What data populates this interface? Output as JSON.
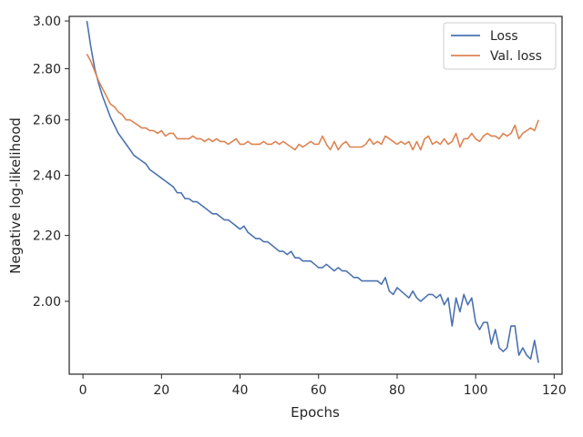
{
  "chart_data": {
    "type": "line",
    "xlabel": "Epochs",
    "ylabel": "Negative log-likelihood",
    "xlim": [
      -3.5,
      122
    ],
    "ylim": [
      1.8,
      3.02
    ],
    "y_scale": "log",
    "x_ticks": [
      0,
      20,
      40,
      60,
      80,
      100,
      120
    ],
    "y_ticks": [
      2.0,
      2.2,
      2.4,
      2.6,
      2.8,
      3.0
    ],
    "y_tick_labels": [
      "2.00",
      "2.20",
      "2.40",
      "2.60",
      "2.80",
      "3.00"
    ],
    "grid": false,
    "legend_position": "top-right",
    "series": [
      {
        "name": "Loss",
        "color": "#4c72b0",
        "x": [
          1,
          2,
          3,
          4,
          5,
          6,
          7,
          8,
          9,
          10,
          11,
          12,
          13,
          14,
          15,
          16,
          17,
          18,
          19,
          20,
          21,
          22,
          23,
          24,
          25,
          26,
          27,
          28,
          29,
          30,
          31,
          32,
          33,
          34,
          35,
          36,
          37,
          38,
          39,
          40,
          41,
          42,
          43,
          44,
          45,
          46,
          47,
          48,
          49,
          50,
          51,
          52,
          53,
          54,
          55,
          56,
          57,
          58,
          59,
          60,
          61,
          62,
          63,
          64,
          65,
          66,
          67,
          68,
          69,
          70,
          71,
          72,
          73,
          74,
          75,
          76,
          77,
          78,
          79,
          80,
          81,
          82,
          83,
          84,
          85,
          86,
          87,
          88,
          89,
          90,
          91,
          92,
          93,
          94,
          95,
          96,
          97,
          98,
          99,
          100,
          101,
          102,
          103,
          104,
          105,
          106,
          107,
          108,
          109,
          110,
          111,
          112,
          113,
          114,
          115,
          116
        ],
        "y": [
          3.0,
          2.89,
          2.8,
          2.74,
          2.69,
          2.65,
          2.61,
          2.58,
          2.55,
          2.53,
          2.51,
          2.49,
          2.47,
          2.46,
          2.45,
          2.44,
          2.42,
          2.41,
          2.4,
          2.39,
          2.38,
          2.37,
          2.36,
          2.34,
          2.34,
          2.32,
          2.32,
          2.31,
          2.31,
          2.3,
          2.29,
          2.28,
          2.27,
          2.27,
          2.26,
          2.25,
          2.25,
          2.24,
          2.23,
          2.22,
          2.23,
          2.21,
          2.2,
          2.19,
          2.19,
          2.18,
          2.18,
          2.17,
          2.16,
          2.15,
          2.15,
          2.14,
          2.15,
          2.13,
          2.13,
          2.12,
          2.12,
          2.12,
          2.11,
          2.1,
          2.1,
          2.11,
          2.1,
          2.09,
          2.1,
          2.09,
          2.09,
          2.08,
          2.07,
          2.07,
          2.06,
          2.06,
          2.06,
          2.06,
          2.06,
          2.05,
          2.07,
          2.03,
          2.02,
          2.04,
          2.03,
          2.02,
          2.01,
          2.03,
          2.01,
          2.0,
          2.01,
          2.02,
          2.02,
          2.01,
          2.02,
          1.99,
          2.01,
          1.93,
          2.01,
          1.97,
          2.02,
          1.99,
          2.01,
          1.94,
          1.92,
          1.94,
          1.94,
          1.88,
          1.92,
          1.87,
          1.86,
          1.87,
          1.93,
          1.93,
          1.85,
          1.87,
          1.85,
          1.84,
          1.89,
          1.83
        ]
      },
      {
        "name": "Val. loss",
        "color": "#dd8452",
        "x": [
          1,
          2,
          3,
          4,
          5,
          6,
          7,
          8,
          9,
          10,
          11,
          12,
          13,
          14,
          15,
          16,
          17,
          18,
          19,
          20,
          21,
          22,
          23,
          24,
          25,
          26,
          27,
          28,
          29,
          30,
          31,
          32,
          33,
          34,
          35,
          36,
          37,
          38,
          39,
          40,
          41,
          42,
          43,
          44,
          45,
          46,
          47,
          48,
          49,
          50,
          51,
          52,
          53,
          54,
          55,
          56,
          57,
          58,
          59,
          60,
          61,
          62,
          63,
          64,
          65,
          66,
          67,
          68,
          69,
          70,
          71,
          72,
          73,
          74,
          75,
          76,
          77,
          78,
          79,
          80,
          81,
          82,
          83,
          84,
          85,
          86,
          87,
          88,
          89,
          90,
          91,
          92,
          93,
          94,
          95,
          96,
          97,
          98,
          99,
          100,
          101,
          102,
          103,
          104,
          105,
          106,
          107,
          108,
          109,
          110,
          111,
          112,
          113,
          114,
          115,
          116
        ],
        "y": [
          2.86,
          2.83,
          2.79,
          2.75,
          2.72,
          2.69,
          2.66,
          2.65,
          2.63,
          2.62,
          2.6,
          2.6,
          2.59,
          2.58,
          2.57,
          2.57,
          2.56,
          2.56,
          2.55,
          2.56,
          2.54,
          2.55,
          2.55,
          2.53,
          2.53,
          2.53,
          2.53,
          2.54,
          2.53,
          2.53,
          2.52,
          2.53,
          2.52,
          2.53,
          2.52,
          2.52,
          2.51,
          2.52,
          2.53,
          2.51,
          2.51,
          2.52,
          2.51,
          2.51,
          2.51,
          2.52,
          2.51,
          2.51,
          2.52,
          2.51,
          2.52,
          2.51,
          2.5,
          2.49,
          2.51,
          2.5,
          2.51,
          2.52,
          2.51,
          2.51,
          2.54,
          2.51,
          2.49,
          2.52,
          2.49,
          2.51,
          2.52,
          2.5,
          2.5,
          2.5,
          2.5,
          2.51,
          2.53,
          2.51,
          2.52,
          2.51,
          2.54,
          2.53,
          2.52,
          2.51,
          2.52,
          2.51,
          2.52,
          2.49,
          2.52,
          2.49,
          2.53,
          2.54,
          2.51,
          2.52,
          2.51,
          2.53,
          2.51,
          2.52,
          2.55,
          2.5,
          2.53,
          2.53,
          2.55,
          2.53,
          2.52,
          2.54,
          2.55,
          2.54,
          2.54,
          2.53,
          2.55,
          2.54,
          2.55,
          2.58,
          2.53,
          2.55,
          2.56,
          2.57,
          2.56,
          2.6
        ]
      }
    ]
  }
}
